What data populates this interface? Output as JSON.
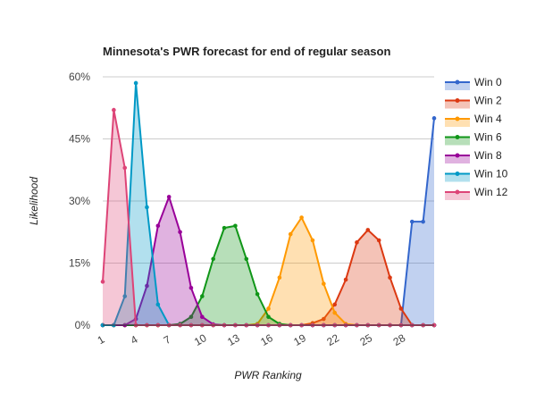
{
  "chart_data": {
    "type": "area",
    "title": "Minnesota's PWR forecast for end of regular season",
    "xlabel": "PWR Ranking",
    "ylabel": "Likelihood",
    "xlim": [
      1,
      31
    ],
    "ylim": [
      0,
      60
    ],
    "x_ticks": [
      1,
      4,
      7,
      10,
      13,
      16,
      19,
      22,
      25,
      28
    ],
    "y_ticks": [
      {
        "value": 0,
        "label": "0%"
      },
      {
        "value": 15,
        "label": "15%"
      },
      {
        "value": 30,
        "label": "30%"
      },
      {
        "value": 45,
        "label": "45%"
      },
      {
        "value": 60,
        "label": "60%"
      }
    ],
    "grid": true,
    "legend_position": "right",
    "x": [
      1,
      2,
      3,
      4,
      5,
      6,
      7,
      8,
      9,
      10,
      11,
      12,
      13,
      14,
      15,
      16,
      17,
      18,
      19,
      20,
      21,
      22,
      23,
      24,
      25,
      26,
      27,
      28,
      29,
      30,
      31
    ],
    "series": [
      {
        "name": "Win 0",
        "color": "#3366cc",
        "fill": "#aec3ee",
        "values": [
          0,
          0,
          0,
          0,
          0,
          0,
          0,
          0,
          0,
          0,
          0,
          0,
          0,
          0,
          0,
          0,
          0,
          0,
          0,
          0,
          0,
          0,
          0,
          0,
          0,
          0,
          0,
          0,
          25,
          25,
          50
        ]
      },
      {
        "name": "Win 2",
        "color": "#dc3912",
        "fill": "#efab9c",
        "values": [
          0,
          0,
          0,
          0,
          0,
          0,
          0,
          0,
          0,
          0,
          0,
          0,
          0,
          0,
          0,
          0,
          0,
          0,
          0,
          0.5,
          1.5,
          5,
          11,
          20,
          23,
          20.5,
          11.5,
          4,
          0,
          0,
          0
        ]
      },
      {
        "name": "Win 4",
        "color": "#ff9900",
        "fill": "#ffd699",
        "values": [
          0,
          0,
          0,
          0,
          0,
          0,
          0,
          0,
          0,
          0,
          0,
          0,
          0,
          0,
          0.3,
          4,
          11.5,
          22,
          26,
          20.5,
          10,
          3,
          0.3,
          0,
          0,
          0,
          0,
          0,
          0,
          0,
          0
        ]
      },
      {
        "name": "Win 6",
        "color": "#109618",
        "fill": "#a3d6a6",
        "values": [
          0,
          0,
          0,
          0,
          0,
          0,
          0,
          0.3,
          2,
          7,
          16,
          23.5,
          24,
          16,
          7.5,
          2,
          0.3,
          0,
          0,
          0,
          0,
          0,
          0,
          0,
          0,
          0,
          0,
          0,
          0,
          0,
          0
        ]
      },
      {
        "name": "Win 8",
        "color": "#990099",
        "fill": "#d8a3d8",
        "values": [
          0,
          0,
          0,
          1.5,
          9.5,
          24,
          31,
          22.5,
          9,
          2,
          0.2,
          0,
          0,
          0,
          0,
          0,
          0,
          0,
          0,
          0,
          0,
          0,
          0,
          0,
          0,
          0,
          0,
          0,
          0,
          0,
          0
        ]
      },
      {
        "name": "Win 10",
        "color": "#0099c6",
        "fill": "#8fcfe6",
        "values": [
          0,
          0,
          7,
          58.5,
          28.5,
          5,
          0,
          0,
          0,
          0,
          0,
          0,
          0,
          0,
          0,
          0,
          0,
          0,
          0,
          0,
          0,
          0,
          0,
          0,
          0,
          0,
          0,
          0,
          0,
          0,
          0
        ]
      },
      {
        "name": "Win 12",
        "color": "#dd4477",
        "fill": "#f0b0c6",
        "values": [
          10.5,
          52,
          38,
          0,
          0,
          0,
          0,
          0,
          0,
          0,
          0,
          0,
          0,
          0,
          0,
          0,
          0,
          0,
          0,
          0,
          0,
          0,
          0,
          0,
          0,
          0,
          0,
          0,
          0,
          0,
          0
        ]
      }
    ]
  }
}
